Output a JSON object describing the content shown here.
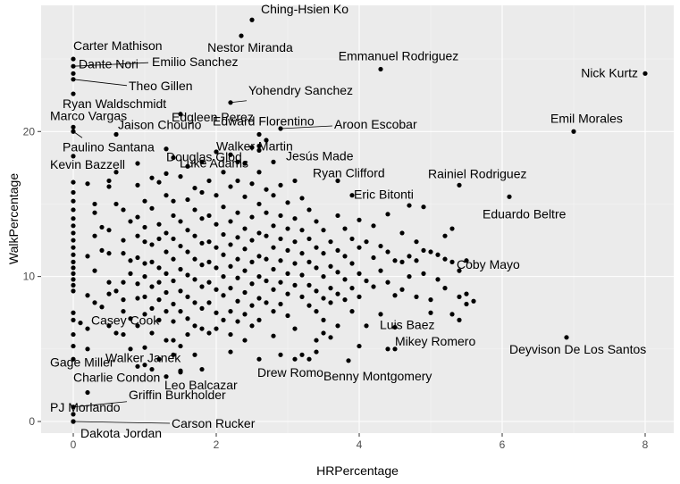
{
  "chart_data": {
    "type": "scatter",
    "xlabel": "HRPercentage",
    "ylabel": "WalkPercentage",
    "xlim": [
      -0.45,
      8.4
    ],
    "ylim": [
      -0.8,
      28.7
    ],
    "x_ticks": [
      0,
      2,
      4,
      6,
      8
    ],
    "y_ticks": [
      0,
      10,
      20
    ],
    "grid": true,
    "colors": {
      "panel": "#ebebeb",
      "grid_major": "#ffffff",
      "grid_minor": "#f5f5f5",
      "point": "#000000",
      "segment": "#000000"
    },
    "labeled_points": [
      {
        "name": "Ching-Hsien Ko",
        "x": 2.5,
        "y": 27.7
      },
      {
        "name": "Nestor Miranda",
        "x": 2.35,
        "y": 26.6
      },
      {
        "name": "Carter Mathison",
        "x": 0.0,
        "y": 25.0
      },
      {
        "name": "Emilio Sanchez",
        "x": 0.0,
        "y": 24.5
      },
      {
        "name": "Dante Nori",
        "x": 0.0,
        "y": 24.0
      },
      {
        "name": "Emmanuel Rodriguez",
        "x": 4.3,
        "y": 24.3
      },
      {
        "name": "Nick Kurtz",
        "x": 8.0,
        "y": 24.0
      },
      {
        "name": "Theo Gillen",
        "x": 0.0,
        "y": 23.6
      },
      {
        "name": "Yohendry Sanchez",
        "x": 2.2,
        "y": 22.0
      },
      {
        "name": "Edgleen Perez",
        "x": 1.5,
        "y": 21.2
      },
      {
        "name": "Ryan Waldschmidt",
        "x": 0.0,
        "y": 22.6
      },
      {
        "name": "Marco Vargas",
        "x": 0.0,
        "y": 20.3
      },
      {
        "name": "Jaison Chourio",
        "x": 0.6,
        "y": 19.8
      },
      {
        "name": "Edward Florentino",
        "x": 2.6,
        "y": 19.8
      },
      {
        "name": "Aroon Escobar",
        "x": 2.9,
        "y": 20.2
      },
      {
        "name": "Emil Morales",
        "x": 7.0,
        "y": 20.0
      },
      {
        "name": "Paulino Santana",
        "x": 0.0,
        "y": 20.0
      },
      {
        "name": "Douglas Glod",
        "x": 1.3,
        "y": 18.8
      },
      {
        "name": "Walker Martin",
        "x": 2.6,
        "y": 19.0
      },
      {
        "name": "Jesús Made",
        "x": 2.6,
        "y": 18.7
      },
      {
        "name": "Luke Adams",
        "x": 2.3,
        "y": 17.9
      },
      {
        "name": "Kevin Bazzell",
        "x": 0.0,
        "y": 18.3
      },
      {
        "name": "Ryan Clifford",
        "x": 3.7,
        "y": 16.6
      },
      {
        "name": "Rainiel Rodriguez",
        "x": 5.4,
        "y": 16.3
      },
      {
        "name": "Eric Bitonti",
        "x": 3.9,
        "y": 15.6
      },
      {
        "name": "Eduardo Beltre",
        "x": 6.1,
        "y": 15.5
      },
      {
        "name": "Coby Mayo",
        "x": 5.4,
        "y": 10.4
      },
      {
        "name": "Casey Cook",
        "x": 0.1,
        "y": 6.8
      },
      {
        "name": "Luis Baez",
        "x": 4.5,
        "y": 6.5
      },
      {
        "name": "Gage Miller",
        "x": 0.0,
        "y": 5.2
      },
      {
        "name": "Mikey Romero",
        "x": 4.4,
        "y": 5.0
      },
      {
        "name": "Deyvison De Los Santos",
        "x": 6.9,
        "y": 5.8
      },
      {
        "name": "Walker Janek",
        "x": 1.4,
        "y": 4.6
      },
      {
        "name": "Drew Romo",
        "x": 2.6,
        "y": 4.3
      },
      {
        "name": "Benny Montgomery",
        "x": 3.85,
        "y": 4.2
      },
      {
        "name": "Charlie Condon",
        "x": 1.0,
        "y": 3.9
      },
      {
        "name": "Leo Balcazar",
        "x": 1.5,
        "y": 3.4
      },
      {
        "name": "Griffin Burkholder",
        "x": 0.0,
        "y": 1.0
      },
      {
        "name": "PJ Morlando",
        "x": 0.0,
        "y": 0.5
      },
      {
        "name": "Carson Rucker",
        "x": 0.0,
        "y": 0.0
      },
      {
        "name": "Dakota Jordan",
        "x": 0.0,
        "y": 0.0
      }
    ],
    "other_points": [
      [
        0.0,
        16.5
      ],
      [
        0.0,
        15.8
      ],
      [
        0.0,
        15.2
      ],
      [
        0.0,
        14.6
      ],
      [
        0.0,
        14.0
      ],
      [
        0.0,
        13.5
      ],
      [
        0.0,
        13.0
      ],
      [
        0.0,
        12.5
      ],
      [
        0.0,
        12.0
      ],
      [
        0.0,
        11.5
      ],
      [
        0.0,
        11.0
      ],
      [
        0.0,
        10.6
      ],
      [
        0.0,
        10.2
      ],
      [
        0.0,
        9.8
      ],
      [
        0.0,
        9.4
      ],
      [
        0.0,
        9.0
      ],
      [
        0.0,
        7.5
      ],
      [
        0.0,
        7.0
      ],
      [
        0.0,
        6.0
      ],
      [
        0.0,
        4.3
      ],
      [
        0.2,
        16.4
      ],
      [
        0.2,
        11.4
      ],
      [
        0.2,
        8.7
      ],
      [
        0.2,
        6.4
      ],
      [
        0.2,
        5.0
      ],
      [
        0.2,
        2.0
      ],
      [
        0.3,
        15.0
      ],
      [
        0.3,
        14.4
      ],
      [
        0.3,
        12.8
      ],
      [
        0.3,
        10.4
      ],
      [
        0.3,
        8.2
      ],
      [
        0.4,
        13.4
      ],
      [
        0.4,
        11.8
      ],
      [
        0.4,
        7.9
      ],
      [
        0.5,
        16.6
      ],
      [
        0.5,
        16.2
      ],
      [
        0.5,
        13.2
      ],
      [
        0.5,
        11.6
      ],
      [
        0.5,
        9.6
      ],
      [
        0.5,
        8.8
      ],
      [
        0.5,
        6.6
      ],
      [
        0.6,
        17.2
      ],
      [
        0.6,
        15.0
      ],
      [
        0.6,
        9.0
      ],
      [
        0.6,
        6.1
      ],
      [
        0.7,
        14.6
      ],
      [
        0.7,
        12.5
      ],
      [
        0.7,
        11.6
      ],
      [
        0.7,
        9.6
      ],
      [
        0.7,
        8.4
      ],
      [
        0.7,
        7.6
      ],
      [
        0.7,
        6.0
      ],
      [
        0.8,
        13.8
      ],
      [
        0.8,
        11.1
      ],
      [
        0.8,
        10.2
      ],
      [
        0.8,
        7.1
      ],
      [
        0.8,
        5.0
      ],
      [
        0.9,
        17.8
      ],
      [
        0.9,
        16.3
      ],
      [
        0.9,
        14.1
      ],
      [
        0.9,
        12.8
      ],
      [
        0.9,
        11.3
      ],
      [
        0.9,
        9.5
      ],
      [
        0.9,
        8.5
      ],
      [
        0.9,
        6.6
      ],
      [
        0.9,
        3.8
      ],
      [
        1.0,
        15.2
      ],
      [
        1.0,
        13.4
      ],
      [
        1.0,
        12.4
      ],
      [
        1.0,
        10.9
      ],
      [
        1.0,
        10.0
      ],
      [
        1.0,
        8.6
      ],
      [
        1.0,
        7.4
      ],
      [
        1.0,
        5.1
      ],
      [
        1.1,
        16.8
      ],
      [
        1.1,
        14.7
      ],
      [
        1.1,
        12.2
      ],
      [
        1.1,
        11.0
      ],
      [
        1.1,
        9.3
      ],
      [
        1.1,
        7.8
      ],
      [
        1.1,
        6.1
      ],
      [
        1.1,
        3.6
      ],
      [
        1.2,
        16.5
      ],
      [
        1.2,
        13.6
      ],
      [
        1.2,
        12.6
      ],
      [
        1.2,
        10.6
      ],
      [
        1.2,
        9.6
      ],
      [
        1.2,
        8.4
      ],
      [
        1.2,
        7.0
      ],
      [
        1.2,
        4.3
      ],
      [
        1.3,
        17.1
      ],
      [
        1.3,
        15.6
      ],
      [
        1.3,
        13.0
      ],
      [
        1.3,
        11.7
      ],
      [
        1.3,
        10.2
      ],
      [
        1.3,
        8.9
      ],
      [
        1.3,
        7.6
      ],
      [
        1.3,
        5.6
      ],
      [
        1.3,
        3.1
      ],
      [
        1.4,
        18.2
      ],
      [
        1.4,
        15.2
      ],
      [
        1.4,
        14.2
      ],
      [
        1.4,
        12.6
      ],
      [
        1.4,
        11.2
      ],
      [
        1.4,
        9.7
      ],
      [
        1.4,
        8.1
      ],
      [
        1.4,
        6.9
      ],
      [
        1.4,
        5.6
      ],
      [
        1.5,
        16.9
      ],
      [
        1.5,
        13.8
      ],
      [
        1.5,
        12.1
      ],
      [
        1.5,
        10.5
      ],
      [
        1.5,
        9.0
      ],
      [
        1.5,
        7.6
      ],
      [
        1.5,
        5.2
      ],
      [
        1.5,
        3.5
      ],
      [
        1.6,
        17.6
      ],
      [
        1.6,
        15.3
      ],
      [
        1.6,
        13.2
      ],
      [
        1.6,
        11.7
      ],
      [
        1.6,
        10.1
      ],
      [
        1.6,
        8.6
      ],
      [
        1.6,
        7.1
      ],
      [
        1.6,
        6.0
      ],
      [
        1.7,
        16.1
      ],
      [
        1.7,
        14.6
      ],
      [
        1.7,
        12.8
      ],
      [
        1.7,
        11.2
      ],
      [
        1.7,
        9.8
      ],
      [
        1.7,
        8.2
      ],
      [
        1.7,
        6.6
      ],
      [
        1.7,
        4.6
      ],
      [
        1.8,
        17.9
      ],
      [
        1.8,
        15.8
      ],
      [
        1.8,
        14.0
      ],
      [
        1.8,
        12.3
      ],
      [
        1.8,
        10.8
      ],
      [
        1.8,
        9.3
      ],
      [
        1.8,
        7.8
      ],
      [
        1.8,
        6.4
      ],
      [
        1.8,
        3.6
      ],
      [
        1.9,
        16.6
      ],
      [
        1.9,
        14.2
      ],
      [
        1.9,
        12.4
      ],
      [
        1.9,
        11.0
      ],
      [
        1.9,
        9.6
      ],
      [
        1.9,
        8.2
      ],
      [
        1.9,
        6.1
      ],
      [
        2.0,
        18.6
      ],
      [
        2.0,
        15.6
      ],
      [
        2.0,
        13.6
      ],
      [
        2.0,
        12.0
      ],
      [
        2.0,
        10.6
      ],
      [
        2.0,
        9.1
      ],
      [
        2.0,
        7.5
      ],
      [
        2.0,
        6.4
      ],
      [
        2.1,
        17.2
      ],
      [
        2.1,
        14.8
      ],
      [
        2.1,
        12.9
      ],
      [
        2.1,
        11.5
      ],
      [
        2.1,
        10.0
      ],
      [
        2.1,
        8.7
      ],
      [
        2.1,
        7.0
      ],
      [
        2.2,
        18.4
      ],
      [
        2.2,
        16.2
      ],
      [
        2.2,
        13.8
      ],
      [
        2.2,
        12.2
      ],
      [
        2.2,
        10.7
      ],
      [
        2.2,
        9.2
      ],
      [
        2.2,
        7.6
      ],
      [
        2.2,
        6.0
      ],
      [
        2.2,
        4.8
      ],
      [
        2.3,
        16.6
      ],
      [
        2.3,
        14.4
      ],
      [
        2.3,
        12.7
      ],
      [
        2.3,
        11.2
      ],
      [
        2.3,
        9.9
      ],
      [
        2.3,
        8.3
      ],
      [
        2.3,
        6.9
      ],
      [
        2.4,
        17.8
      ],
      [
        2.4,
        15.5
      ],
      [
        2.4,
        13.3
      ],
      [
        2.4,
        11.9
      ],
      [
        2.4,
        10.4
      ],
      [
        2.4,
        8.9
      ],
      [
        2.4,
        7.4
      ],
      [
        2.4,
        5.6
      ],
      [
        2.5,
        18.9
      ],
      [
        2.5,
        16.4
      ],
      [
        2.5,
        14.1
      ],
      [
        2.5,
        12.5
      ],
      [
        2.5,
        11.0
      ],
      [
        2.5,
        9.5
      ],
      [
        2.5,
        8.0
      ],
      [
        2.5,
        6.6
      ],
      [
        2.6,
        17.2
      ],
      [
        2.6,
        15.0
      ],
      [
        2.6,
        13.0
      ],
      [
        2.6,
        11.4
      ],
      [
        2.6,
        10.0
      ],
      [
        2.6,
        8.5
      ],
      [
        2.6,
        7.0
      ],
      [
        2.7,
        19.4
      ],
      [
        2.7,
        16.0
      ],
      [
        2.7,
        14.4
      ],
      [
        2.7,
        12.8
      ],
      [
        2.7,
        11.2
      ],
      [
        2.7,
        9.7
      ],
      [
        2.7,
        8.2
      ],
      [
        2.8,
        17.9
      ],
      [
        2.8,
        15.6
      ],
      [
        2.8,
        13.5
      ],
      [
        2.8,
        12.0
      ],
      [
        2.8,
        10.5
      ],
      [
        2.8,
        9.1
      ],
      [
        2.8,
        7.6
      ],
      [
        2.8,
        5.9
      ],
      [
        2.9,
        16.3
      ],
      [
        2.9,
        14.2
      ],
      [
        2.9,
        12.6
      ],
      [
        2.9,
        11.1
      ],
      [
        2.9,
        9.6
      ],
      [
        2.9,
        8.1
      ],
      [
        2.9,
        4.6
      ],
      [
        3.0,
        15.1
      ],
      [
        3.0,
        13.3
      ],
      [
        3.0,
        11.8
      ],
      [
        3.0,
        10.2
      ],
      [
        3.0,
        8.8
      ],
      [
        3.0,
        7.3
      ],
      [
        3.1,
        16.6
      ],
      [
        3.1,
        14.0
      ],
      [
        3.1,
        12.4
      ],
      [
        3.1,
        10.9
      ],
      [
        3.1,
        9.4
      ],
      [
        3.1,
        6.4
      ],
      [
        3.1,
        4.3
      ],
      [
        3.2,
        15.4
      ],
      [
        3.2,
        13.2
      ],
      [
        3.2,
        11.6
      ],
      [
        3.2,
        10.1
      ],
      [
        3.2,
        8.6
      ],
      [
        3.2,
        4.6
      ],
      [
        3.3,
        14.6
      ],
      [
        3.3,
        12.6
      ],
      [
        3.3,
        11.0
      ],
      [
        3.3,
        9.4
      ],
      [
        3.3,
        8.0
      ],
      [
        3.3,
        4.3
      ],
      [
        3.4,
        13.8
      ],
      [
        3.4,
        12.0
      ],
      [
        3.4,
        10.6
      ],
      [
        3.4,
        9.0
      ],
      [
        3.4,
        7.6
      ],
      [
        3.4,
        5.6
      ],
      [
        3.4,
        4.8
      ],
      [
        3.5,
        13.2
      ],
      [
        3.5,
        11.6
      ],
      [
        3.5,
        10.0
      ],
      [
        3.5,
        8.5
      ],
      [
        3.5,
        7.0
      ],
      [
        3.5,
        6.1
      ],
      [
        3.6,
        12.4
      ],
      [
        3.6,
        10.7
      ],
      [
        3.6,
        9.2
      ],
      [
        3.6,
        8.2
      ],
      [
        3.6,
        5.8
      ],
      [
        3.7,
        14.2
      ],
      [
        3.7,
        11.8
      ],
      [
        3.7,
        10.3
      ],
      [
        3.7,
        8.8
      ],
      [
        3.7,
        6.6
      ],
      [
        3.8,
        13.3
      ],
      [
        3.8,
        11.4
      ],
      [
        3.8,
        9.8
      ],
      [
        3.8,
        8.4
      ],
      [
        3.9,
        12.6
      ],
      [
        3.9,
        10.9
      ],
      [
        3.9,
        9.2
      ],
      [
        3.9,
        7.6
      ],
      [
        4.0,
        13.9
      ],
      [
        4.0,
        12.0
      ],
      [
        4.0,
        10.2
      ],
      [
        4.0,
        8.6
      ],
      [
        4.0,
        5.2
      ],
      [
        4.1,
        12.4
      ],
      [
        4.1,
        9.7
      ],
      [
        4.1,
        6.6
      ],
      [
        4.2,
        13.5
      ],
      [
        4.2,
        11.3
      ],
      [
        4.2,
        9.3
      ],
      [
        4.3,
        12.1
      ],
      [
        4.3,
        10.4
      ],
      [
        4.3,
        7.4
      ],
      [
        4.4,
        14.3
      ],
      [
        4.4,
        11.7
      ],
      [
        4.4,
        9.6
      ],
      [
        4.5,
        11.1
      ],
      [
        4.5,
        8.7
      ],
      [
        4.5,
        5.0
      ],
      [
        4.6,
        13.0
      ],
      [
        4.6,
        11.0
      ],
      [
        4.6,
        9.1
      ],
      [
        4.7,
        14.9
      ],
      [
        4.7,
        11.4
      ],
      [
        4.7,
        10.0
      ],
      [
        4.8,
        12.4
      ],
      [
        4.8,
        11.1
      ],
      [
        4.8,
        8.6
      ],
      [
        4.9,
        14.8
      ],
      [
        4.9,
        11.8
      ],
      [
        4.9,
        10.2
      ],
      [
        5.0,
        11.7
      ],
      [
        5.0,
        8.4
      ],
      [
        5.0,
        7.5
      ],
      [
        5.1,
        11.5
      ],
      [
        5.1,
        9.8
      ],
      [
        5.2,
        12.8
      ],
      [
        5.2,
        11.2
      ],
      [
        5.2,
        9.2
      ],
      [
        5.3,
        13.3
      ],
      [
        5.3,
        11.0
      ],
      [
        5.3,
        7.4
      ],
      [
        5.4,
        8.6
      ],
      [
        5.4,
        7.0
      ],
      [
        5.5,
        11.1
      ],
      [
        5.5,
        8.8
      ],
      [
        5.5,
        8.1
      ],
      [
        5.6,
        8.3
      ]
    ]
  }
}
